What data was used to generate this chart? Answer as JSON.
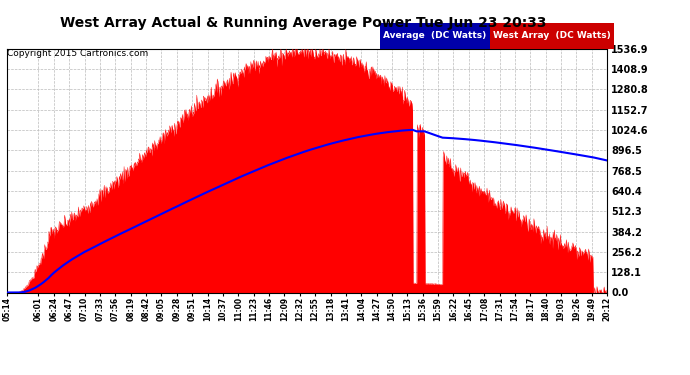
{
  "title": "West Array Actual & Running Average Power Tue Jun 23 20:33",
  "copyright": "Copyright 2015 Cartronics.com",
  "y_max": 1536.9,
  "y_min": 0.0,
  "y_ticks": [
    0.0,
    128.1,
    256.2,
    384.2,
    512.3,
    640.4,
    768.5,
    896.5,
    1024.6,
    1152.7,
    1280.8,
    1408.9,
    1536.9
  ],
  "background_color": "#ffffff",
  "grid_color": "#bbbbbb",
  "red_color": "#ff0000",
  "blue_color": "#0000ff",
  "x_labels": [
    "05:14",
    "06:01",
    "06:24",
    "06:47",
    "07:10",
    "07:33",
    "07:56",
    "08:19",
    "08:42",
    "09:05",
    "09:28",
    "09:51",
    "10:14",
    "10:37",
    "11:00",
    "11:23",
    "11:46",
    "12:09",
    "12:32",
    "12:55",
    "13:18",
    "13:41",
    "14:04",
    "14:27",
    "14:50",
    "15:13",
    "15:36",
    "15:59",
    "16:22",
    "16:45",
    "17:08",
    "17:31",
    "17:54",
    "18:17",
    "18:40",
    "19:03",
    "19:26",
    "19:49",
    "20:12"
  ]
}
